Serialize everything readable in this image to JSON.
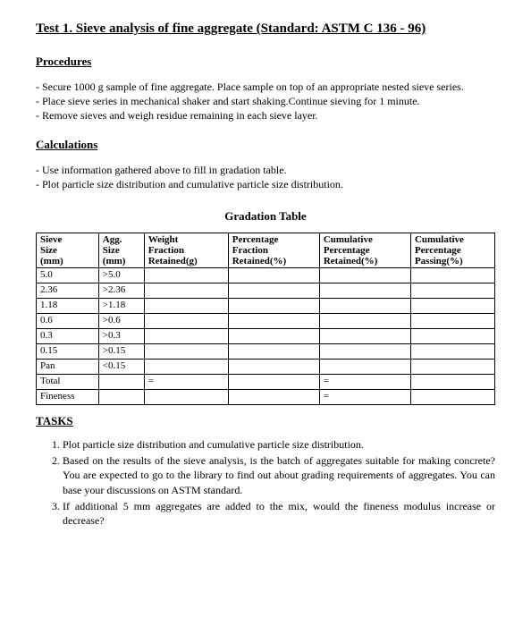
{
  "title": "Test 1. Sieve analysis of fine aggregate (Standard: ASTM C 136 - 96)",
  "procedures": {
    "heading": "Procedures",
    "lines": [
      "- Secure 1000 g sample of fine aggregate. Place sample on top of an appropriate nested sieve series.",
      "- Place sieve series in mechanical shaker and start shaking.Continue sieving for 1 minute.",
      "- Remove sieves and weigh residue remaining in each sieve layer."
    ]
  },
  "calculations": {
    "heading": "Calculations",
    "lines": [
      "- Use information gathered above to fill in gradation table.",
      "- Plot particle size distribution and cumulative particle size distribution."
    ]
  },
  "table": {
    "title": "Gradation Table",
    "headers": {
      "c0a": "Sieve",
      "c0b": "Size",
      "c0c": "(mm)",
      "c1a": "Agg.",
      "c1b": "Size",
      "c1c": "(mm)",
      "c2a": "Weight",
      "c2b": "Fraction",
      "c2c": "Retained(g)",
      "c3a": "Percentage",
      "c3b": "Fraction",
      "c3c": "Retained(%)",
      "c4a": "Cumulative",
      "c4b": "Percentage",
      "c4c": "Retained(%)",
      "c5a": "Cumulative",
      "c5b": "Percentage",
      "c5c": "Passing(%)"
    },
    "rows": [
      {
        "sieve": "5.0",
        "agg": ">5.0"
      },
      {
        "sieve": "2.36",
        "agg": ">2.36"
      },
      {
        "sieve": "1.18",
        "agg": ">1.18"
      },
      {
        "sieve": "0.6",
        "agg": ">0.6"
      },
      {
        "sieve": "0.3",
        "agg": ">0.3"
      },
      {
        "sieve": "0.15",
        "agg": ">0.15"
      },
      {
        "sieve": "Pan",
        "agg": "<0.15"
      }
    ],
    "total_label": "Total",
    "fineness_label": "Fineness",
    "eq": "="
  },
  "tasks": {
    "heading": "TASKS",
    "items": [
      "Plot particle size distribution and cumulative particle size distribution.",
      "Based on the results of the sieve analysis, is the batch of aggregates suitable for making concrete? You are expected to go to the library to find out about grading requirements of aggregates. You can base your discussions on ASTM standard.",
      "If additional 5 mm aggregates are added to the mix, would the fineness modulus increase or decrease?"
    ]
  }
}
